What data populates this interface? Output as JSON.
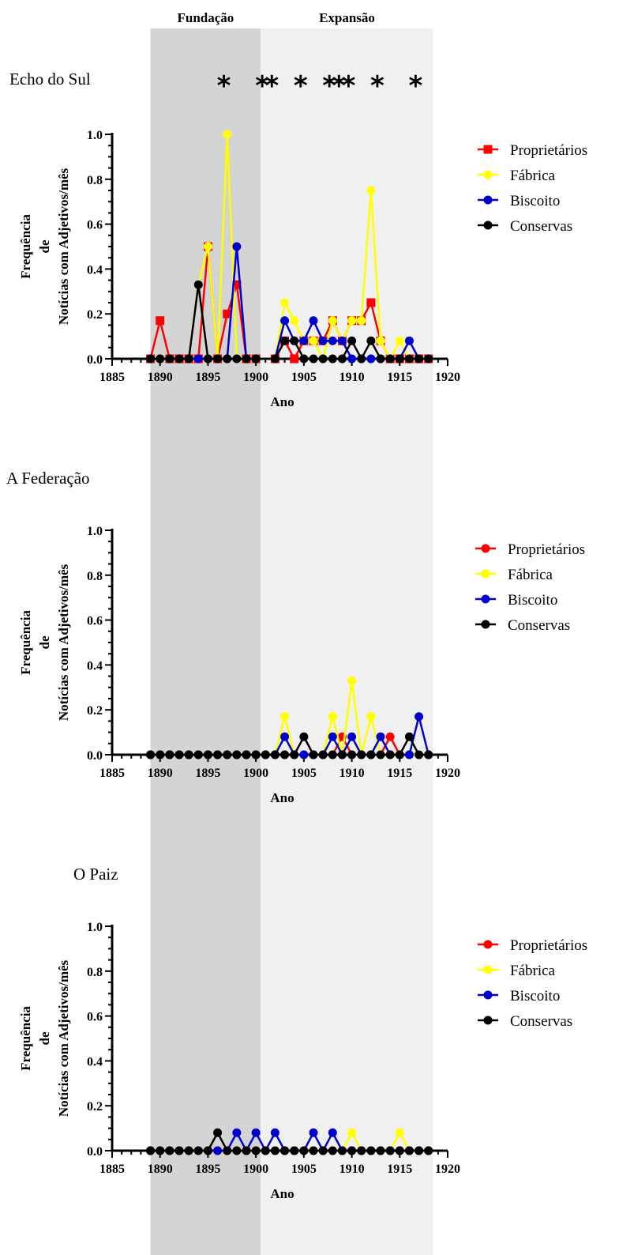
{
  "periods": [
    {
      "label": "Fundação",
      "from": 1889,
      "to": 1900.5,
      "color": "#d4d4d4"
    },
    {
      "label": "Expansão",
      "from": 1900.5,
      "to": 1918.5,
      "color": "#f0f0f0"
    }
  ],
  "series_styles": [
    {
      "name": "Proprietários",
      "color": "#ff0000"
    },
    {
      "name": "Fábrica",
      "color": "#ffff00"
    },
    {
      "name": "Biscoito",
      "color": "#0000cd"
    },
    {
      "name": "Conservas",
      "color": "#000000"
    }
  ],
  "chart_data": [
    {
      "type": "line",
      "title": "Echo do Sul",
      "xlabel": "Ano",
      "ylabel": "Frequência de Notícias com Adjetivos/mês",
      "ylabel_lines": [
        "Frequência",
        "de",
        "Notícias com Adjetivos/mês"
      ],
      "xlim": [
        1885,
        1920
      ],
      "ylim": [
        0,
        1.0
      ],
      "xticks": [
        1885,
        1890,
        1895,
        1900,
        1905,
        1910,
        1915,
        1920
      ],
      "yticks": [
        "0.0",
        "0.2",
        "0.4",
        "0.6",
        "0.8",
        "1.0"
      ],
      "legend_position": "right",
      "marker_proprietarios": "square",
      "significance_years": [
        1896,
        1900,
        1901,
        1904,
        1907,
        1908,
        1909,
        1912,
        1916
      ],
      "significance_symbol": "*",
      "x": [
        1889,
        1890,
        1891,
        1892,
        1893,
        1894,
        1895,
        1896,
        1897,
        1898,
        1899,
        1900,
        1902,
        1903,
        1904,
        1905,
        1906,
        1907,
        1908,
        1909,
        1910,
        1911,
        1912,
        1913,
        1914,
        1915,
        1916,
        1917,
        1918
      ],
      "series": [
        {
          "name": "Proprietários",
          "values": [
            0,
            0.17,
            0,
            0,
            0,
            0,
            0.5,
            0,
            0.2,
            0.33,
            0,
            0,
            0,
            0.08,
            0,
            0.08,
            0.08,
            0.08,
            0.17,
            0.08,
            0.17,
            0.17,
            0.25,
            0.08,
            0,
            0,
            0,
            0,
            0
          ]
        },
        {
          "name": "Fábrica",
          "values": [
            0,
            0,
            0,
            0,
            0,
            0.33,
            0.5,
            0,
            1.0,
            0,
            0,
            0,
            0,
            0.25,
            0.17,
            0.08,
            0.08,
            0,
            0.17,
            0.08,
            0.17,
            0.17,
            0.75,
            0.08,
            0,
            0.08,
            0,
            0,
            0
          ]
        },
        {
          "name": "Biscoito",
          "values": [
            0,
            0,
            0,
            0,
            0,
            0,
            0,
            0,
            0,
            0.5,
            0,
            0,
            0,
            0.17,
            0.08,
            0.08,
            0.17,
            0.08,
            0.08,
            0.08,
            0,
            0,
            0,
            0,
            0,
            0,
            0.08,
            0,
            0
          ]
        },
        {
          "name": "Conservas",
          "values": [
            0,
            0,
            0,
            0,
            0,
            0.33,
            0,
            0,
            0,
            0,
            0,
            0,
            0,
            0.08,
            0.08,
            0,
            0,
            0,
            0,
            0,
            0.08,
            0,
            0.08,
            0,
            0,
            0,
            0,
            0,
            0
          ]
        }
      ]
    },
    {
      "type": "line",
      "title": "A Federação",
      "xlabel": "Ano",
      "ylabel": "Frequência de Notícias com Adjetivos/mês",
      "ylabel_lines": [
        "Frequência",
        "de",
        "Notícias com Adjetivos/mês"
      ],
      "xlim": [
        1885,
        1920
      ],
      "ylim": [
        0,
        1.0
      ],
      "xticks": [
        1885,
        1890,
        1895,
        1900,
        1905,
        1910,
        1915,
        1920
      ],
      "yticks": [
        "0.0",
        "0.2",
        "0.4",
        "0.6",
        "0.8",
        "1.0"
      ],
      "legend_position": "right",
      "marker_proprietarios": "circle",
      "x": [
        1889,
        1890,
        1891,
        1892,
        1893,
        1894,
        1895,
        1896,
        1897,
        1898,
        1899,
        1900,
        1901,
        1902,
        1903,
        1904,
        1905,
        1906,
        1907,
        1908,
        1909,
        1910,
        1911,
        1912,
        1913,
        1914,
        1915,
        1916,
        1917,
        1918
      ],
      "series": [
        {
          "name": "Proprietários",
          "values": [
            0,
            0,
            0,
            0,
            0,
            0,
            0,
            0,
            0,
            0,
            0,
            0,
            0,
            0,
            0,
            0,
            0,
            0,
            0,
            0,
            0.08,
            0,
            0,
            0,
            0,
            0.08,
            0,
            0,
            0,
            0
          ]
        },
        {
          "name": "Fábrica",
          "values": [
            0,
            0,
            0,
            0,
            0,
            0,
            0,
            0,
            0,
            0,
            0,
            0,
            0,
            0,
            0.17,
            0,
            0,
            0,
            0,
            0.17,
            0,
            0.33,
            0,
            0.17,
            0,
            0,
            0,
            0,
            0,
            0
          ]
        },
        {
          "name": "Biscoito",
          "values": [
            0,
            0,
            0,
            0,
            0,
            0,
            0,
            0,
            0,
            0,
            0,
            0,
            0,
            0,
            0.08,
            0,
            0,
            0,
            0,
            0.08,
            0,
            0.08,
            0,
            0,
            0.08,
            0,
            0,
            0,
            0.17,
            0
          ]
        },
        {
          "name": "Conservas",
          "values": [
            0,
            0,
            0,
            0,
            0,
            0,
            0,
            0,
            0,
            0,
            0,
            0,
            0,
            0,
            0,
            0,
            0.08,
            0,
            0,
            0,
            0,
            0,
            0,
            0,
            0,
            0,
            0,
            0.08,
            0,
            0
          ]
        }
      ]
    },
    {
      "type": "line",
      "title": "O Paiz",
      "xlabel": "Ano",
      "ylabel": "Frequência de Notícias com Adjetivos/mês",
      "ylabel_lines": [
        "Frequência",
        "de",
        "Notícias com Adjetivos/mês"
      ],
      "xlim": [
        1885,
        1920
      ],
      "ylim": [
        0,
        1.0
      ],
      "xticks": [
        1885,
        1890,
        1895,
        1900,
        1905,
        1910,
        1915,
        1920
      ],
      "yticks": [
        "0.0",
        "0.2",
        "0.4",
        "0.6",
        "0.8",
        "1.0"
      ],
      "legend_position": "right",
      "marker_proprietarios": "circle",
      "x": [
        1889,
        1890,
        1891,
        1892,
        1893,
        1894,
        1895,
        1896,
        1897,
        1898,
        1899,
        1900,
        1901,
        1902,
        1903,
        1904,
        1905,
        1906,
        1907,
        1908,
        1909,
        1910,
        1911,
        1912,
        1913,
        1914,
        1915,
        1916,
        1917,
        1918
      ],
      "series": [
        {
          "name": "Proprietários",
          "values": [
            0,
            0,
            0,
            0,
            0,
            0,
            0,
            0,
            0,
            0,
            0,
            0,
            0,
            0,
            0,
            0,
            0,
            0,
            0,
            0,
            0,
            0,
            0,
            0,
            0,
            0,
            0,
            0,
            0,
            0
          ]
        },
        {
          "name": "Fábrica",
          "values": [
            0,
            0,
            0,
            0,
            0,
            0,
            0,
            0,
            0,
            0,
            0,
            0,
            0,
            0,
            0,
            0,
            0,
            0,
            0,
            0,
            0,
            0.08,
            0,
            0,
            0,
            0,
            0.08,
            0,
            0,
            0
          ]
        },
        {
          "name": "Biscoito",
          "values": [
            0,
            0,
            0,
            0,
            0,
            0,
            0,
            0,
            0,
            0.08,
            0,
            0.08,
            0,
            0.08,
            0,
            0,
            0,
            0.08,
            0,
            0.08,
            0,
            0,
            0,
            0,
            0,
            0,
            0,
            0,
            0,
            0
          ]
        },
        {
          "name": "Conservas",
          "values": [
            0,
            0,
            0,
            0,
            0,
            0,
            0,
            0.08,
            0,
            0,
            0,
            0,
            0,
            0,
            0,
            0,
            0,
            0,
            0,
            0,
            0,
            0,
            0,
            0,
            0,
            0,
            0,
            0,
            0,
            0
          ]
        }
      ]
    }
  ]
}
